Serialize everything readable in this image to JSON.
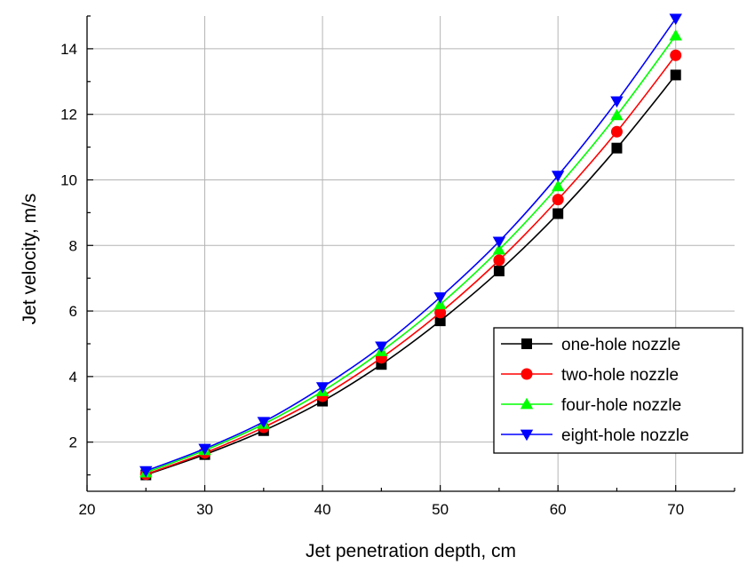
{
  "chart_data": {
    "type": "line",
    "title": "",
    "xlabel": "Jet penetration depth, cm",
    "ylabel": "Jet velocity, m/s",
    "xlim": [
      20,
      75
    ],
    "ylim": [
      0.5,
      15
    ],
    "x_ticks": [
      "20",
      "30",
      "40",
      "50",
      "60",
      "70"
    ],
    "y_ticks": [
      "2",
      "4",
      "6",
      "8",
      "10",
      "12",
      "14"
    ],
    "grid": true,
    "legend_position": "bottom-right",
    "x": [
      25,
      30,
      35,
      40,
      45,
      50,
      55,
      60,
      65,
      70
    ],
    "series": [
      {
        "name": "one-hole nozzle",
        "color": "#000000",
        "marker": "square",
        "values": [
          1.0,
          1.62,
          2.35,
          3.25,
          4.37,
          5.7,
          7.22,
          8.97,
          10.97,
          13.2
        ]
      },
      {
        "name": "two-hole nozzle",
        "color": "#ff0000",
        "marker": "circle",
        "values": [
          1.02,
          1.67,
          2.45,
          3.4,
          4.57,
          5.95,
          7.55,
          9.4,
          11.47,
          13.8
        ]
      },
      {
        "name": "four-hole nozzle",
        "color": "#00ff00",
        "marker": "triangle-up",
        "values": [
          1.07,
          1.75,
          2.55,
          3.55,
          4.77,
          6.2,
          7.87,
          9.8,
          11.97,
          14.4
        ]
      },
      {
        "name": "eight-hole nozzle",
        "color": "#0000ff",
        "marker": "triangle-down",
        "values": [
          1.12,
          1.8,
          2.62,
          3.68,
          4.92,
          6.42,
          8.12,
          10.13,
          12.4,
          14.92
        ]
      }
    ]
  }
}
